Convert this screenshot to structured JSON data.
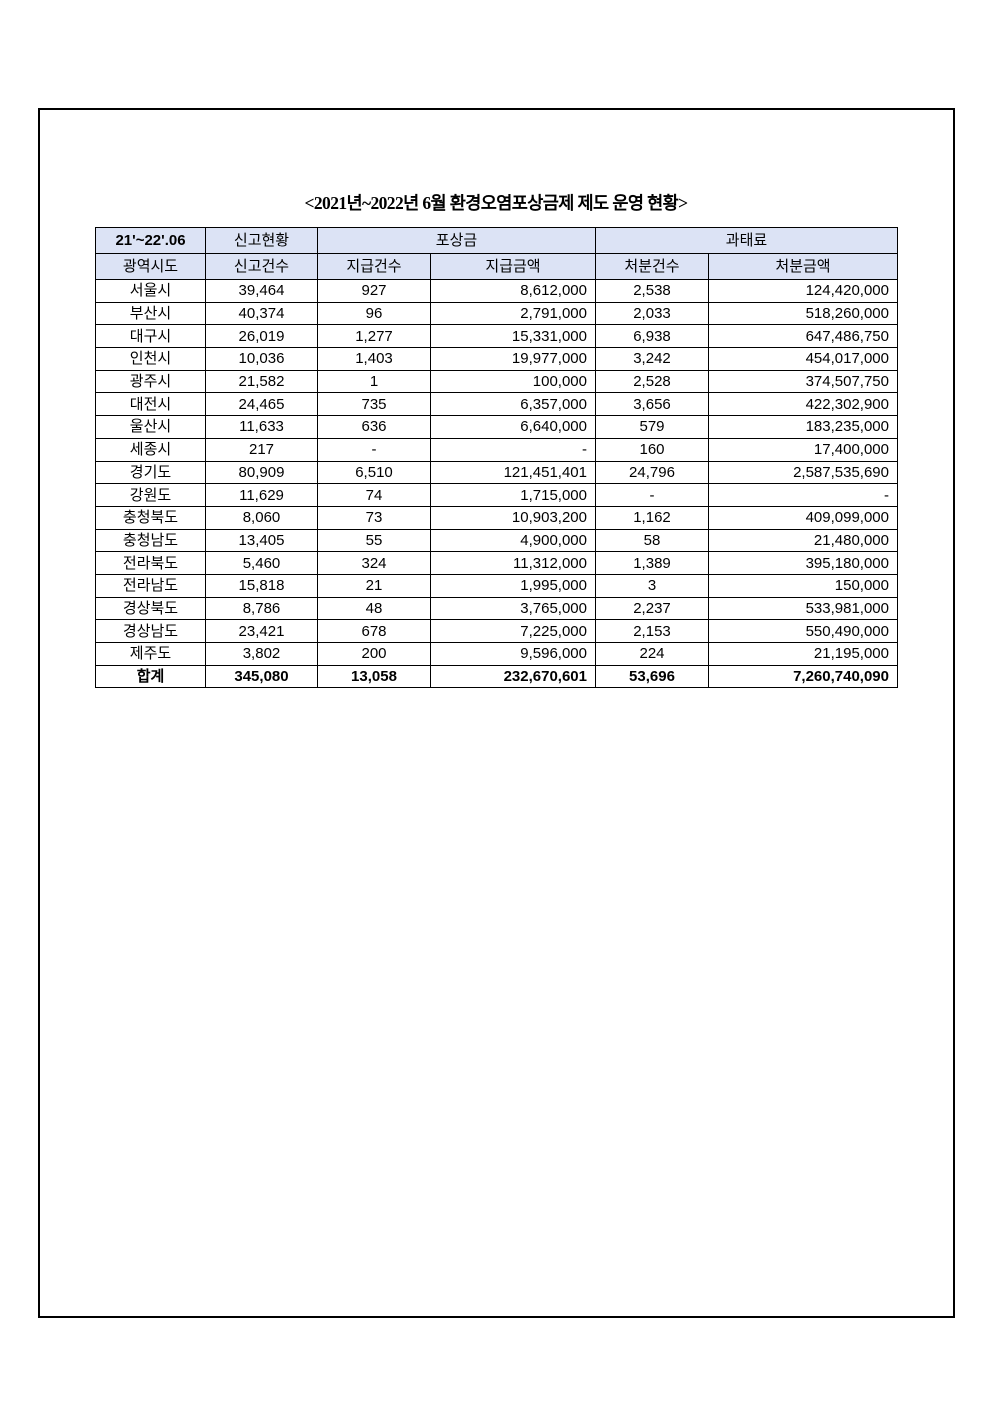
{
  "page": {
    "title": "<2021년~2022년 6월 환경오염포상금제 제도 운영 현황>"
  },
  "colors": {
    "header_bg": "#dce3f5",
    "border": "#000000",
    "page_background": "#ffffff"
  },
  "table": {
    "header": {
      "period": "21'~22'.06",
      "group_report": "신고현황",
      "group_reward": "포상금",
      "group_fine": "과태료",
      "col_region": "광역시도",
      "col_report_count": "신고건수",
      "col_pay_count": "지급건수",
      "col_pay_amount": "지급금액",
      "col_fine_count": "처분건수",
      "col_fine_amount": "처분금액"
    },
    "rows": [
      {
        "region": "서울시",
        "report_count": "39,464",
        "pay_count": "927",
        "pay_amount": "8,612,000",
        "fine_count": "2,538",
        "fine_amount": "124,420,000"
      },
      {
        "region": "부산시",
        "report_count": "40,374",
        "pay_count": "96",
        "pay_amount": "2,791,000",
        "fine_count": "2,033",
        "fine_amount": "518,260,000"
      },
      {
        "region": "대구시",
        "report_count": "26,019",
        "pay_count": "1,277",
        "pay_amount": "15,331,000",
        "fine_count": "6,938",
        "fine_amount": "647,486,750"
      },
      {
        "region": "인천시",
        "report_count": "10,036",
        "pay_count": "1,403",
        "pay_amount": "19,977,000",
        "fine_count": "3,242",
        "fine_amount": "454,017,000"
      },
      {
        "region": "광주시",
        "report_count": "21,582",
        "pay_count": "1",
        "pay_amount": "100,000",
        "fine_count": "2,528",
        "fine_amount": "374,507,750"
      },
      {
        "region": "대전시",
        "report_count": "24,465",
        "pay_count": "735",
        "pay_amount": "6,357,000",
        "fine_count": "3,656",
        "fine_amount": "422,302,900"
      },
      {
        "region": "울산시",
        "report_count": "11,633",
        "pay_count": "636",
        "pay_amount": "6,640,000",
        "fine_count": "579",
        "fine_amount": "183,235,000"
      },
      {
        "region": "세종시",
        "report_count": "217",
        "pay_count": "-",
        "pay_amount": "-",
        "fine_count": "160",
        "fine_amount": "17,400,000"
      },
      {
        "region": "경기도",
        "report_count": "80,909",
        "pay_count": "6,510",
        "pay_amount": "121,451,401",
        "fine_count": "24,796",
        "fine_amount": "2,587,535,690"
      },
      {
        "region": "강원도",
        "report_count": "11,629",
        "pay_count": "74",
        "pay_amount": "1,715,000",
        "fine_count": "-",
        "fine_amount": "-"
      },
      {
        "region": "충청북도",
        "report_count": "8,060",
        "pay_count": "73",
        "pay_amount": "10,903,200",
        "fine_count": "1,162",
        "fine_amount": "409,099,000"
      },
      {
        "region": "충청남도",
        "report_count": "13,405",
        "pay_count": "55",
        "pay_amount": "4,900,000",
        "fine_count": "58",
        "fine_amount": "21,480,000"
      },
      {
        "region": "전라북도",
        "report_count": "5,460",
        "pay_count": "324",
        "pay_amount": "11,312,000",
        "fine_count": "1,389",
        "fine_amount": "395,180,000"
      },
      {
        "region": "전라남도",
        "report_count": "15,818",
        "pay_count": "21",
        "pay_amount": "1,995,000",
        "fine_count": "3",
        "fine_amount": "150,000"
      },
      {
        "region": "경상북도",
        "report_count": "8,786",
        "pay_count": "48",
        "pay_amount": "3,765,000",
        "fine_count": "2,237",
        "fine_amount": "533,981,000"
      },
      {
        "region": "경상남도",
        "report_count": "23,421",
        "pay_count": "678",
        "pay_amount": "7,225,000",
        "fine_count": "2,153",
        "fine_amount": "550,490,000"
      },
      {
        "region": "제주도",
        "report_count": "3,802",
        "pay_count": "200",
        "pay_amount": "9,596,000",
        "fine_count": "224",
        "fine_amount": "21,195,000"
      }
    ],
    "total": {
      "region": "합계",
      "report_count": "345,080",
      "pay_count": "13,058",
      "pay_amount": "232,670,601",
      "fine_count": "53,696",
      "fine_amount": "7,260,740,090"
    }
  }
}
